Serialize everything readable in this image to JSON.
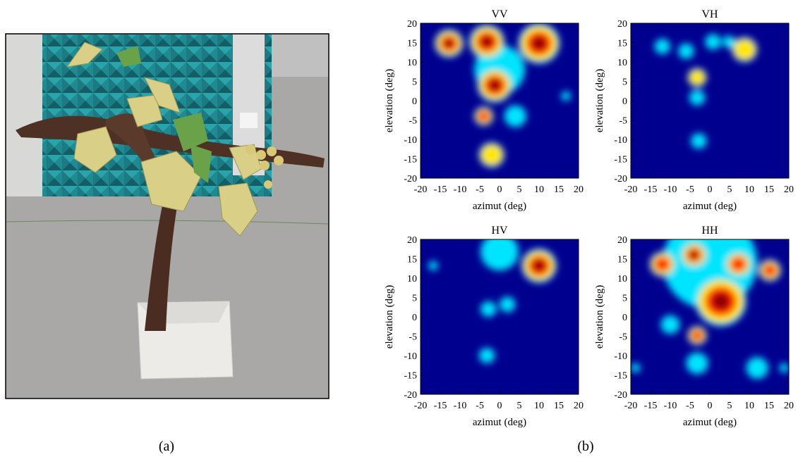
{
  "chart_data": [
    {
      "type": "heatmap",
      "title": "VV",
      "xlabel": "azimut  (deg)",
      "ylabel": "elevation (deg)",
      "xlim": [
        -20,
        20
      ],
      "ylim": [
        -20,
        20
      ],
      "xticks": [
        -20,
        -15,
        -10,
        -5,
        0,
        5,
        10,
        15,
        20
      ],
      "yticks": [
        -20,
        -15,
        -10,
        -5,
        0,
        5,
        10,
        15,
        20
      ]
    },
    {
      "type": "heatmap",
      "title": "VH",
      "xlabel": "azimut  (deg)",
      "ylabel": "elevation (deg)",
      "xlim": [
        -20,
        20
      ],
      "ylim": [
        -20,
        20
      ],
      "xticks": [
        -20,
        -15,
        -10,
        -5,
        0,
        5,
        10,
        15,
        20
      ],
      "yticks": [
        -20,
        -15,
        -10,
        -5,
        0,
        5,
        10,
        15,
        20
      ]
    },
    {
      "type": "heatmap",
      "title": "HV",
      "xlabel": "azimut  (deg)",
      "ylabel": "elevation (deg)",
      "xlim": [
        -20,
        20
      ],
      "ylim": [
        -20,
        20
      ],
      "xticks": [
        -20,
        -15,
        -10,
        -5,
        0,
        5,
        10,
        15,
        20
      ],
      "yticks": [
        -20,
        -15,
        -10,
        -5,
        0,
        5,
        10,
        15,
        20
      ]
    },
    {
      "type": "heatmap",
      "title": "HH",
      "xlabel": "azimut  (deg)",
      "ylabel": "elevation (deg)",
      "xlim": [
        -20,
        20
      ],
      "ylim": [
        -20,
        20
      ],
      "xticks": [
        -20,
        -15,
        -10,
        -5,
        0,
        5,
        10,
        15,
        20
      ],
      "yticks": [
        -20,
        -15,
        -10,
        -5,
        0,
        5,
        10,
        15,
        20
      ]
    }
  ],
  "captions": [
    "(a)",
    "(b)"
  ]
}
